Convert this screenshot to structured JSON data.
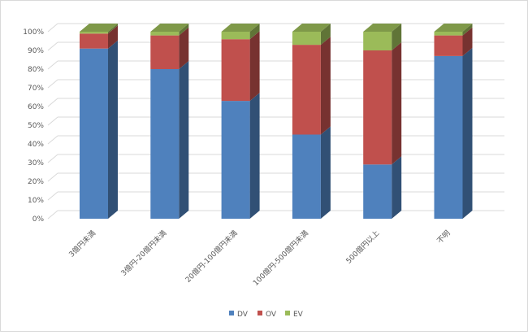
{
  "chart_data": {
    "type": "bar",
    "stacked": true,
    "three_d": true,
    "categories": [
      "3億円未満",
      "3億円-20億円未満",
      "20億円-100億円未満",
      "100億円-500億円未満",
      "500億円以上",
      "不明"
    ],
    "series": [
      {
        "name": "DV",
        "color": "#4f81bd",
        "values": [
          91,
          80,
          63,
          45,
          29,
          87
        ]
      },
      {
        "name": "OV",
        "color": "#c0504d",
        "values": [
          8,
          18,
          33,
          48,
          61,
          11
        ]
      },
      {
        "name": "EV",
        "color": "#9bbb59",
        "values": [
          1,
          2,
          4,
          7,
          10,
          2
        ]
      }
    ],
    "yticks": [
      "0%",
      "10%",
      "20%",
      "30%",
      "40%",
      "50%",
      "60%",
      "70%",
      "80%",
      "90%",
      "100%"
    ],
    "ylim": [
      0,
      100
    ],
    "grid": true,
    "legend_position": "bottom"
  }
}
